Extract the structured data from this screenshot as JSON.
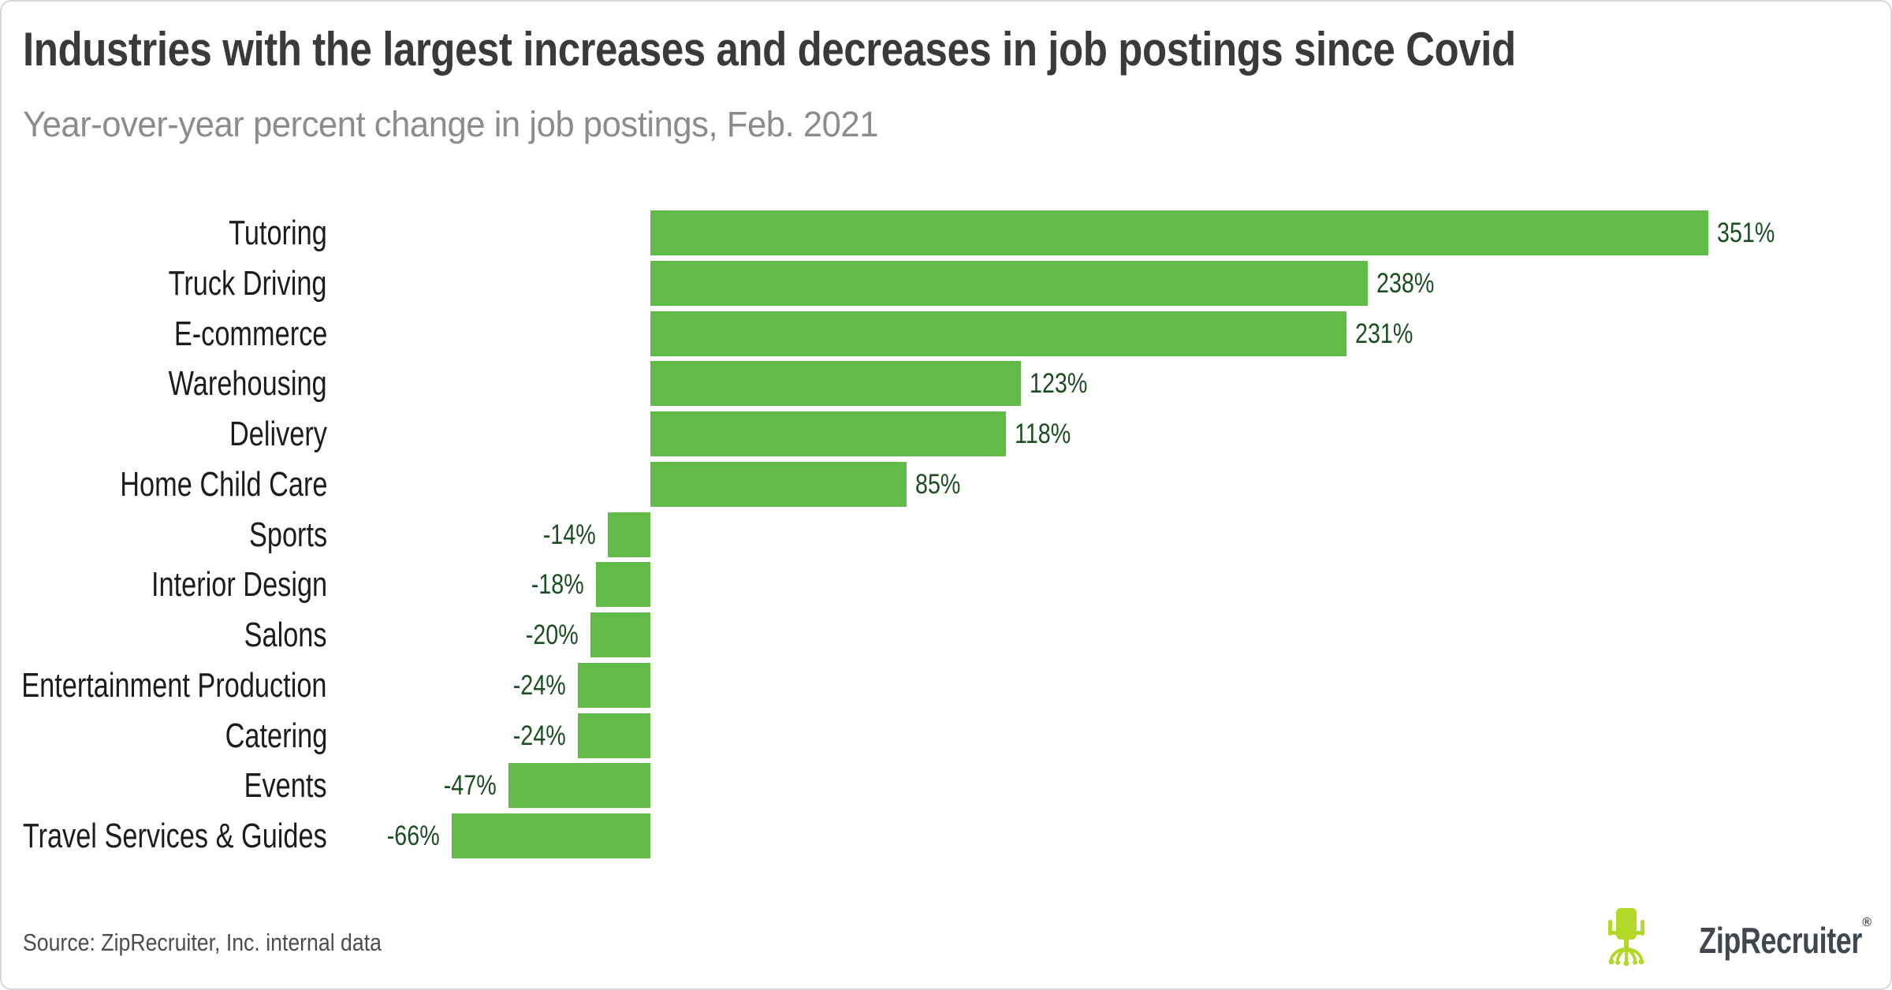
{
  "header": {
    "title": "Industries with the largest increases and decreases in job postings since Covid",
    "subtitle": "Year-over-year percent change in job postings, Feb. 2021"
  },
  "chart_data": {
    "type": "bar",
    "orientation": "horizontal",
    "title": "Industries with the largest increases and decreases in job postings since Covid",
    "subtitle": "Year-over-year percent change in job postings, Feb. 2021",
    "categories": [
      "Tutoring",
      "Truck Driving",
      "E-commerce",
      "Warehousing",
      "Delivery",
      "Home Child Care",
      "Sports",
      "Interior Design",
      "Salons",
      "Entertainment Production",
      "Catering",
      "Events",
      "Travel Services & Guides"
    ],
    "values": [
      351,
      238,
      231,
      123,
      118,
      85,
      -14,
      -18,
      -20,
      -24,
      -24,
      -47,
      -66
    ],
    "value_labels": [
      "351%",
      "238%",
      "231%",
      "123%",
      "118%",
      "85%",
      "-14%",
      "-18%",
      "-20%",
      "-24%",
      "-24%",
      "-47%",
      "-66%"
    ],
    "unit": "percent",
    "xlim": [
      -66,
      351
    ],
    "grid": false,
    "legend": false,
    "bar_color": "#62bb46",
    "value_label_color": "#1b4e21"
  },
  "footer": {
    "source": "Source: ZipRecruiter, Inc. internal data",
    "logo_text": "ZipRecruiter",
    "registered_mark": "®"
  },
  "colors": {
    "bar_green": "#62bb46",
    "value_dark_green": "#1b4e21",
    "title_gray": "#3a3a3a",
    "subtitle_gray": "#8c8c8c",
    "logo_lime": "#b2d828",
    "logo_slate": "#40474e",
    "card_border": "#d7d7d7"
  }
}
